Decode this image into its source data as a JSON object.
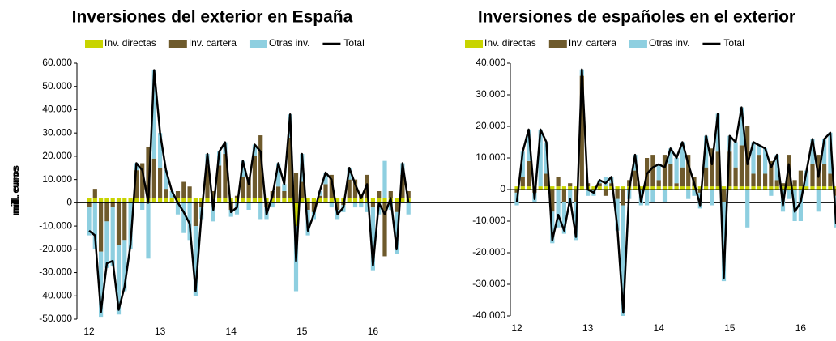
{
  "chart_data": [
    {
      "type": "bar",
      "stacked": true,
      "title": "Inversiones del exterior en España",
      "ylabel": "mill. euros",
      "categories": [
        "12",
        null,
        null,
        null,
        null,
        null,
        null,
        null,
        null,
        null,
        null,
        null,
        "13",
        null,
        null,
        null,
        null,
        null,
        null,
        null,
        null,
        null,
        null,
        null,
        "14",
        null,
        null,
        null,
        null,
        null,
        null,
        null,
        null,
        null,
        null,
        null,
        "15",
        null,
        null,
        null,
        null,
        null,
        null,
        null,
        null,
        null,
        null,
        null,
        "16",
        null,
        null,
        null,
        null,
        null,
        null
      ],
      "ylim": [
        -50000,
        60000
      ],
      "yticks": [
        {
          "value": -50000,
          "label": "-50.000"
        },
        {
          "value": -40000,
          "label": "-40.000"
        },
        {
          "value": -30000,
          "label": "-30.000"
        },
        {
          "value": -20000,
          "label": "-20.000"
        },
        {
          "value": -10000,
          "label": "-10.000"
        },
        0,
        {
          "value": 10000,
          "label": "10.000"
        },
        {
          "value": 20000,
          "label": "20.000"
        },
        {
          "value": 30000,
          "label": "30.000"
        },
        {
          "value": 40000,
          "label": "40.000"
        },
        {
          "value": 50000,
          "label": "50.000"
        },
        {
          "value": 60000,
          "label": "60.000"
        }
      ],
      "series": [
        {
          "name": "Inv. directas",
          "color": "#c8d400",
          "values": [
            2000,
            2000,
            2000,
            2000,
            2000,
            2000,
            2000,
            2000,
            2000,
            2000,
            2000,
            2000,
            2000,
            2000,
            2000,
            2000,
            2000,
            2000,
            2000,
            2000,
            2000,
            2000,
            2000,
            2000,
            2000,
            2000,
            2000,
            2000,
            2000,
            2000,
            2000,
            2000,
            2000,
            2000,
            2000,
            -10000,
            2000,
            2000,
            2000,
            2000,
            2000,
            2000,
            2000,
            2000,
            2000,
            2000,
            2000,
            2000,
            2000,
            2000,
            2000,
            2000,
            2000,
            2000,
            2000
          ]
        },
        {
          "name": "Inv. cartera",
          "color": "#6e5a2c",
          "values": [
            -2000,
            4000,
            -21000,
            -8000,
            -2000,
            -18000,
            -16000,
            0,
            12000,
            15000,
            22000,
            17000,
            13000,
            4000,
            0,
            3000,
            7000,
            5000,
            -10000,
            -2000,
            14000,
            3000,
            14000,
            19000,
            -3000,
            1000,
            9000,
            9000,
            18000,
            27000,
            -2000,
            3000,
            5000,
            3000,
            26000,
            13000,
            7000,
            -3000,
            -4000,
            1000,
            6000,
            10000,
            -3000,
            -1000,
            8000,
            8000,
            2000,
            10000,
            -2000,
            3000,
            -23000,
            3000,
            -4000,
            10000,
            3000
          ]
        },
        {
          "name": "Otras inv.",
          "color": "#8ecfe0",
          "values": [
            -12000,
            -20000,
            -28000,
            -20000,
            -25000,
            -30000,
            -22000,
            -20000,
            3000,
            -3000,
            -24000,
            38000,
            15000,
            8000,
            3000,
            -5000,
            -13000,
            -16000,
            -30000,
            -5000,
            5000,
            -8000,
            6000,
            5000,
            -3000,
            -5000,
            7000,
            -3000,
            5000,
            -7000,
            -5000,
            -2000,
            10000,
            3000,
            10000,
            -28000,
            12000,
            -11000,
            -3000,
            2000,
            5000,
            -2000,
            -4000,
            -3000,
            5000,
            -2000,
            -2000,
            -4000,
            -27000,
            -5000,
            16000,
            -3000,
            -18000,
            5000,
            -5000
          ]
        },
        {
          "name": "Total",
          "type": "line",
          "color": "#000000",
          "values": [
            -12000,
            -14000,
            -47000,
            -26000,
            -25000,
            -46000,
            -36000,
            -18000,
            17000,
            14000,
            0,
            57000,
            30000,
            14000,
            5000,
            0,
            -4000,
            -9000,
            -38000,
            -5000,
            21000,
            -3000,
            22000,
            26000,
            -4000,
            -2000,
            18000,
            8000,
            25000,
            22000,
            -5000,
            3000,
            17000,
            8000,
            38000,
            -25000,
            21000,
            -12000,
            -5000,
            5000,
            13000,
            10000,
            -5000,
            -2000,
            15000,
            8000,
            2000,
            8000,
            -27000,
            0,
            -5000,
            2000,
            -20000,
            17000,
            0
          ]
        }
      ]
    },
    {
      "type": "bar",
      "stacked": true,
      "title": "Inversiones de españoles en el exterior",
      "ylabel": "mill. euros",
      "categories": [
        "12",
        null,
        null,
        null,
        null,
        null,
        null,
        null,
        null,
        null,
        null,
        null,
        "13",
        null,
        null,
        null,
        null,
        null,
        null,
        null,
        null,
        null,
        null,
        null,
        "14",
        null,
        null,
        null,
        null,
        null,
        null,
        null,
        null,
        null,
        null,
        null,
        "15",
        null,
        null,
        null,
        null,
        null,
        null,
        null,
        null,
        null,
        null,
        null,
        "16",
        null,
        null,
        null,
        null,
        null,
        null
      ],
      "ylim": [
        -40000,
        40000
      ],
      "yticks": [
        {
          "value": -40000,
          "label": "-40.000"
        },
        {
          "value": -30000,
          "label": "-30.000"
        },
        {
          "value": -20000,
          "label": "-20.000"
        },
        {
          "value": -10000,
          "label": "-10.000"
        },
        0,
        {
          "value": 10000,
          "label": "10.000"
        },
        {
          "value": 20000,
          "label": "20.000"
        },
        {
          "value": 30000,
          "label": "30.000"
        },
        {
          "value": 40000,
          "label": "40.000"
        }
      ],
      "series": [
        {
          "name": "Inv. directas",
          "color": "#c8d400",
          "values": [
            1000,
            1000,
            1000,
            1000,
            1000,
            1000,
            1000,
            1000,
            1000,
            1000,
            1000,
            1000,
            1000,
            1000,
            1000,
            1000,
            1000,
            1000,
            1000,
            1000,
            1000,
            1000,
            1000,
            1000,
            1000,
            1000,
            1000,
            1000,
            1000,
            1000,
            1000,
            1000,
            1000,
            1000,
            1000,
            1000,
            1000,
            1000,
            1000,
            1000,
            1000,
            1000,
            1000,
            1000,
            1000,
            1000,
            1000,
            1000,
            1000,
            1000,
            1000,
            1000,
            1000,
            1000,
            1000
          ]
        },
        {
          "name": "Inv. cartera",
          "color": "#6e5a2c",
          "values": [
            -1000,
            3000,
            8000,
            -1000,
            0,
            4000,
            -7000,
            3000,
            -4000,
            1000,
            -4000,
            35000,
            1000,
            0,
            1000,
            -2000,
            1000,
            -3000,
            -5000,
            2000,
            5000,
            0,
            9000,
            10000,
            2000,
            10000,
            7000,
            1000,
            6000,
            10000,
            3000,
            -1000,
            6000,
            12000,
            11000,
            -4000,
            11000,
            6000,
            13000,
            19000,
            4000,
            10000,
            4000,
            8000,
            2000,
            1000,
            10000,
            2000,
            5000,
            0,
            7000,
            10000,
            7000,
            4000,
            -2000
          ]
        },
        {
          "name": "Otras inv.",
          "color": "#8ecfe0",
          "values": [
            -4000,
            8000,
            10000,
            -3000,
            18000,
            10000,
            -10000,
            -12000,
            -10000,
            -5000,
            -12000,
            2000,
            -2000,
            -2000,
            1000,
            3000,
            2000,
            -10000,
            -35000,
            -3000,
            5000,
            -5000,
            -5000,
            -4000,
            5000,
            -4000,
            5000,
            8000,
            8000,
            -3000,
            -2000,
            -5000,
            10000,
            -5000,
            12000,
            -25000,
            5000,
            8000,
            12000,
            -12000,
            10000,
            3000,
            8000,
            -2000,
            8000,
            -7000,
            -3000,
            -10000,
            -10000,
            5000,
            8000,
            -7000,
            8000,
            13000,
            -10000
          ]
        },
        {
          "name": "Total",
          "type": "line",
          "color": "#000000",
          "values": [
            -4000,
            12000,
            19000,
            -3000,
            19000,
            15000,
            -16000,
            -8000,
            -13000,
            -3000,
            -15000,
            38000,
            0,
            -1000,
            3000,
            2000,
            4000,
            -12000,
            -39000,
            0,
            11000,
            -4000,
            5000,
            7000,
            8000,
            7000,
            13000,
            10000,
            15000,
            8000,
            2000,
            -5000,
            17000,
            8000,
            24000,
            -28000,
            17000,
            15000,
            26000,
            8000,
            15000,
            14000,
            13000,
            7000,
            11000,
            -5000,
            8000,
            -7000,
            -4000,
            6000,
            16000,
            4000,
            16000,
            18000,
            -11000
          ]
        }
      ]
    }
  ]
}
